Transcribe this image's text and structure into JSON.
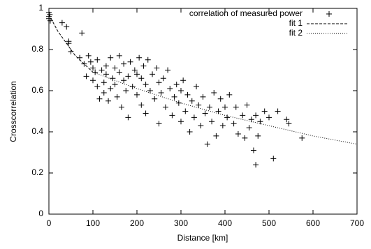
{
  "chart_data": {
    "type": "scatter",
    "xlabel": "Distance [km]",
    "ylabel": "Crosscorrelation",
    "xlim": [
      0,
      700
    ],
    "ylim": [
      0,
      1
    ],
    "xticks": [
      0,
      100,
      200,
      300,
      400,
      500,
      600,
      700
    ],
    "yticks": [
      0,
      0.2,
      0.4,
      0.6,
      0.8,
      1
    ],
    "legend": "top-right",
    "series": [
      {
        "name": "correlation of measured power",
        "type": "scatter",
        "marker": "plus",
        "color": "#000000",
        "x": [
          0,
          0,
          0,
          2,
          3,
          30,
          40,
          45,
          45,
          50,
          75,
          80,
          70,
          85,
          90,
          95,
          100,
          100,
          105,
          110,
          110,
          115,
          120,
          125,
          125,
          130,
          130,
          135,
          140,
          140,
          145,
          150,
          150,
          155,
          160,
          160,
          165,
          170,
          170,
          175,
          180,
          180,
          185,
          190,
          195,
          200,
          200,
          205,
          210,
          210,
          215,
          220,
          220,
          225,
          230,
          235,
          240,
          245,
          250,
          250,
          255,
          260,
          265,
          270,
          275,
          280,
          285,
          290,
          295,
          300,
          300,
          305,
          310,
          315,
          320,
          325,
          330,
          335,
          340,
          345,
          350,
          355,
          360,
          365,
          370,
          375,
          380,
          385,
          390,
          395,
          400,
          405,
          410,
          420,
          425,
          430,
          440,
          445,
          450,
          455,
          460,
          465,
          470,
          470,
          475,
          480,
          490,
          500,
          510,
          520,
          540,
          545,
          575
        ],
        "values": [
          0.98,
          0.96,
          0.95,
          0.97,
          0.94,
          0.93,
          0.91,
          0.84,
          0.83,
          0.79,
          0.88,
          0.73,
          0.76,
          0.67,
          0.77,
          0.74,
          0.71,
          0.65,
          0.69,
          0.75,
          0.62,
          0.56,
          0.7,
          0.64,
          0.59,
          0.72,
          0.68,
          0.55,
          0.61,
          0.76,
          0.66,
          0.63,
          0.71,
          0.57,
          0.77,
          0.69,
          0.52,
          0.65,
          0.73,
          0.6,
          0.67,
          0.47,
          0.74,
          0.62,
          0.7,
          0.68,
          0.58,
          0.76,
          0.66,
          0.53,
          0.72,
          0.63,
          0.49,
          0.75,
          0.6,
          0.68,
          0.56,
          0.71,
          0.64,
          0.44,
          0.59,
          0.66,
          0.52,
          0.7,
          0.61,
          0.48,
          0.57,
          0.63,
          0.54,
          0.6,
          0.45,
          0.65,
          0.5,
          0.58,
          0.4,
          0.55,
          0.47,
          0.62,
          0.53,
          0.43,
          0.57,
          0.49,
          0.34,
          0.52,
          0.45,
          0.59,
          0.38,
          0.5,
          0.56,
          0.43,
          0.52,
          0.47,
          0.58,
          0.44,
          0.52,
          0.39,
          0.48,
          0.37,
          0.53,
          0.42,
          0.46,
          0.31,
          0.48,
          0.24,
          0.38,
          0.45,
          0.5,
          0.47,
          0.27,
          0.5,
          0.46,
          0.44,
          0.37
        ]
      },
      {
        "name": "fit 1",
        "type": "line",
        "dash": "dashed",
        "color": "#000000",
        "x": [
          0,
          10,
          20,
          30,
          40,
          50,
          60,
          70,
          80,
          90,
          100
        ],
        "values": [
          0.97,
          0.93,
          0.89,
          0.86,
          0.83,
          0.8,
          0.77,
          0.75,
          0.73,
          0.71,
          0.69
        ]
      },
      {
        "name": "fit 2",
        "type": "line",
        "dash": "dotted",
        "color": "#000000",
        "x": [
          100,
          200,
          300,
          400,
          500,
          600,
          700
        ],
        "values": [
          0.69,
          0.61,
          0.54,
          0.48,
          0.43,
          0.38,
          0.34
        ]
      }
    ]
  }
}
